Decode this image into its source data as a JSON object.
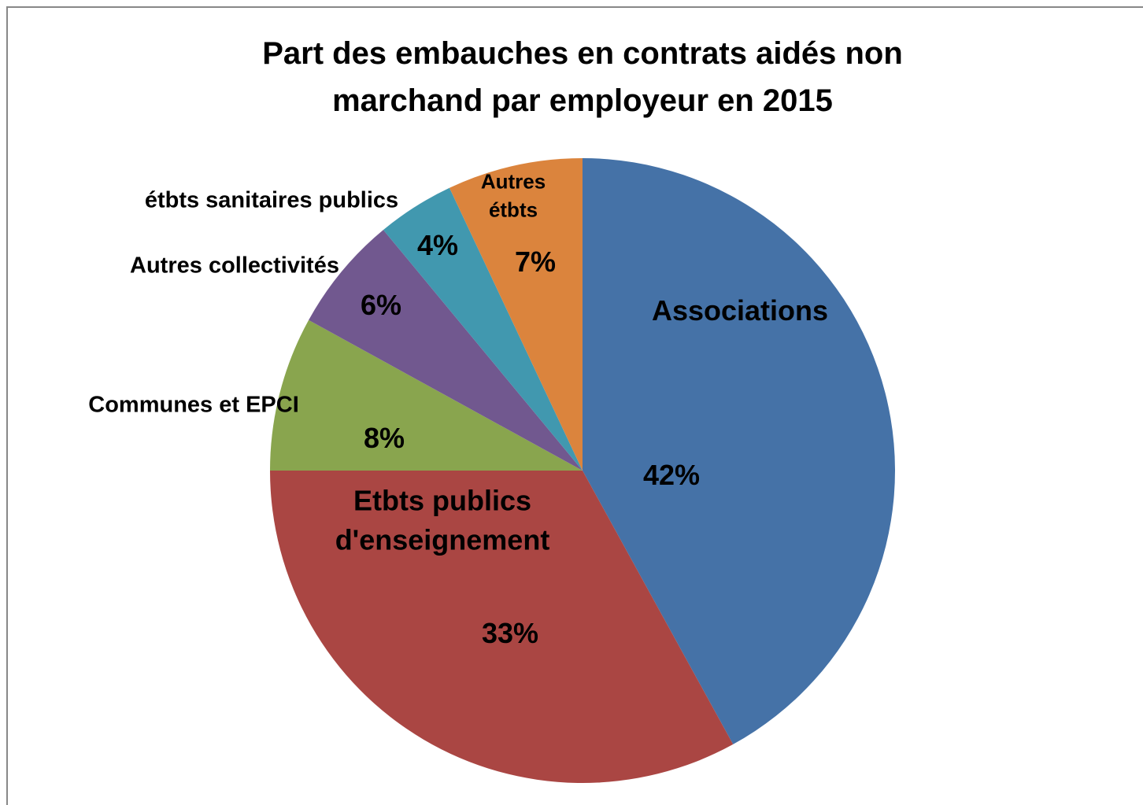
{
  "chart_data": {
    "type": "pie",
    "title": "Part des embauches en contrats aidés non marchand par employeur en 2015",
    "categories": [
      "Associations",
      "Etbts publics d'enseignement",
      "Communes et EPCI",
      "Autres collectivités",
      "étbts sanitaires publics",
      "Autres étbts"
    ],
    "values": [
      42,
      33,
      8,
      6,
      4,
      7
    ],
    "value_labels": [
      "42%",
      "33%",
      "8%",
      "6%",
      "4%",
      "7%"
    ],
    "colors": [
      "#4572a7",
      "#aa4643",
      "#89a54e",
      "#71588f",
      "#4198af",
      "#db843d"
    ]
  }
}
